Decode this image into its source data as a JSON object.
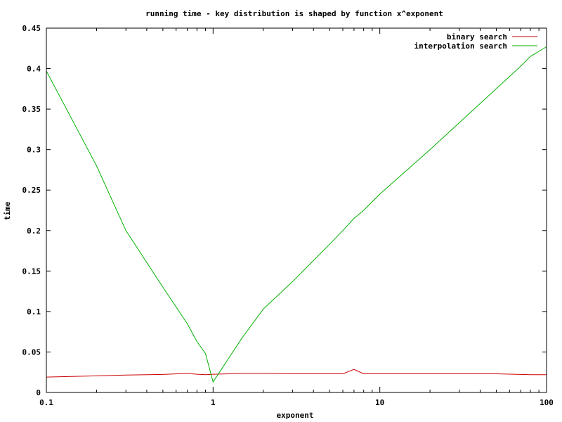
{
  "chart_data": {
    "type": "line",
    "title": "running time - key distribution is shaped by function x^exponent",
    "xlabel": "exponent",
    "ylabel": "time",
    "xscale": "log",
    "xlim": [
      0.1,
      100
    ],
    "ylim": [
      0,
      0.45
    ],
    "x_ticks": [
      {
        "value": 0.1,
        "label": "0.1"
      },
      {
        "value": 1,
        "label": "1"
      },
      {
        "value": 10,
        "label": "10"
      },
      {
        "value": 100,
        "label": "100"
      }
    ],
    "y_ticks": [
      {
        "value": 0,
        "label": "0"
      },
      {
        "value": 0.05,
        "label": "0.05"
      },
      {
        "value": 0.1,
        "label": "0.1"
      },
      {
        "value": 0.15,
        "label": "0.15"
      },
      {
        "value": 0.2,
        "label": "0.2"
      },
      {
        "value": 0.25,
        "label": "0.25"
      },
      {
        "value": 0.3,
        "label": "0.3"
      },
      {
        "value": 0.35,
        "label": "0.35"
      },
      {
        "value": 0.4,
        "label": "0.4"
      },
      {
        "value": 0.45,
        "label": "0.45"
      }
    ],
    "legend_position": "top-right",
    "grid": false,
    "series": [
      {
        "name": "binary search",
        "color": "#cc0000",
        "points": [
          [
            0.1,
            0.019
          ],
          [
            0.2,
            0.0205
          ],
          [
            0.3,
            0.0215
          ],
          [
            0.5,
            0.0222
          ],
          [
            0.7,
            0.0235
          ],
          [
            0.8,
            0.0225
          ],
          [
            0.9,
            0.022
          ],
          [
            1.0,
            0.0225
          ],
          [
            1.5,
            0.0235
          ],
          [
            2.0,
            0.0235
          ],
          [
            3.0,
            0.023
          ],
          [
            4.0,
            0.023
          ],
          [
            6.0,
            0.023
          ],
          [
            7.0,
            0.0285
          ],
          [
            8.0,
            0.023
          ],
          [
            10.0,
            0.023
          ],
          [
            20.0,
            0.023
          ],
          [
            50.0,
            0.023
          ],
          [
            80.0,
            0.022
          ],
          [
            100.0,
            0.022
          ]
        ]
      },
      {
        "name": "interpolation search",
        "color": "#00b000",
        "points": [
          [
            0.1,
            0.397
          ],
          [
            0.2,
            0.28
          ],
          [
            0.3,
            0.2
          ],
          [
            0.5,
            0.13
          ],
          [
            0.7,
            0.085
          ],
          [
            0.8,
            0.063
          ],
          [
            0.9,
            0.048
          ],
          [
            1.0,
            0.013
          ],
          [
            1.5,
            0.068
          ],
          [
            2.0,
            0.103
          ],
          [
            3.0,
            0.137
          ],
          [
            5.0,
            0.183
          ],
          [
            6.0,
            0.2
          ],
          [
            7.0,
            0.215
          ],
          [
            8.0,
            0.225
          ],
          [
            10.0,
            0.245
          ],
          [
            20.0,
            0.3
          ],
          [
            40.0,
            0.357
          ],
          [
            70.0,
            0.403
          ],
          [
            80.0,
            0.415
          ],
          [
            100.0,
            0.427
          ]
        ]
      }
    ]
  }
}
